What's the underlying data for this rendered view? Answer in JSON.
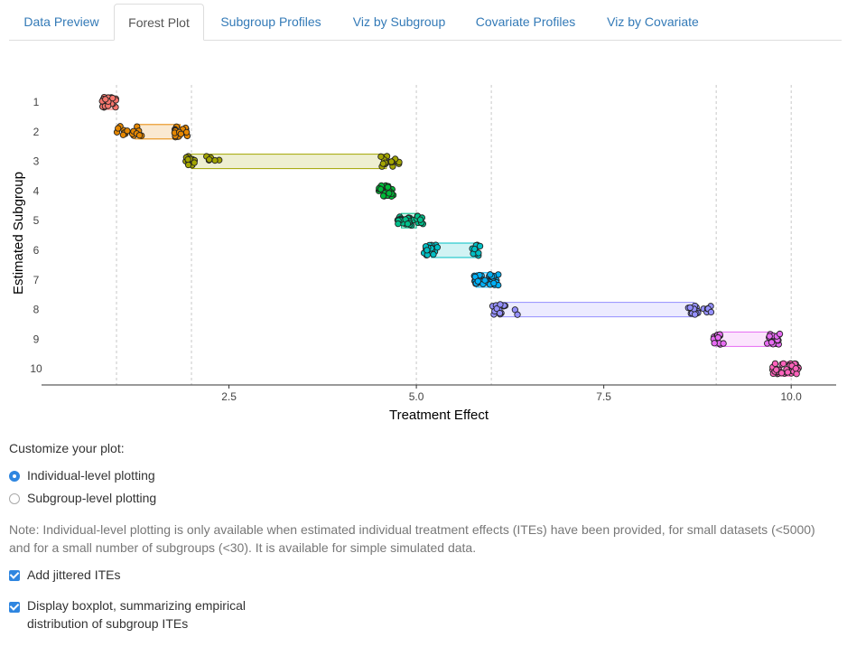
{
  "tabs": [
    {
      "label": "Data Preview",
      "active": false
    },
    {
      "label": "Forest Plot",
      "active": true
    },
    {
      "label": "Subgroup Profiles",
      "active": false
    },
    {
      "label": "Viz by Subgroup",
      "active": false
    },
    {
      "label": "Covariate Profiles",
      "active": false
    },
    {
      "label": "Viz by Covariate",
      "active": false
    }
  ],
  "chart_data": {
    "type": "scatter",
    "xlabel": "Treatment Effect",
    "ylabel": "Estimated Subgroup",
    "x_ticks": [
      "2.5",
      "5.0",
      "7.5",
      "10.0"
    ],
    "y_ticks": [
      "1",
      "2",
      "3",
      "4",
      "5",
      "6",
      "7",
      "8",
      "9",
      "10"
    ],
    "xlim": [
      0.0,
      10.6
    ],
    "grid": "vertical dashed at subgroup boundaries",
    "boundaries": [
      1.0,
      2.0,
      5.0,
      6.0,
      9.0,
      10.0
    ],
    "series": [
      {
        "subgroup": "1",
        "color": "#f8766d",
        "min": 0.8,
        "q1": 0.85,
        "q3": 0.95,
        "max": 1.0
      },
      {
        "subgroup": "2",
        "color": "#e58700",
        "min": 1.0,
        "q1": 1.25,
        "q3": 1.85,
        "max": 1.95
      },
      {
        "subgroup": "3",
        "color": "#a3a500",
        "min": 1.9,
        "q1": 2.0,
        "q3": 4.6,
        "max": 4.8
      },
      {
        "subgroup": "4",
        "color": "#00ba38",
        "min": 4.5,
        "q1": 4.55,
        "q3": 4.65,
        "max": 4.7
      },
      {
        "subgroup": "5",
        "color": "#00c08b",
        "min": 4.75,
        "q1": 4.8,
        "q3": 5.0,
        "max": 5.1
      },
      {
        "subgroup": "6",
        "color": "#00bfc4",
        "min": 5.1,
        "q1": 5.2,
        "q3": 5.8,
        "max": 5.85
      },
      {
        "subgroup": "7",
        "color": "#00b0f6",
        "min": 5.75,
        "q1": 5.8,
        "q3": 6.0,
        "max": 6.1
      },
      {
        "subgroup": "8",
        "color": "#9590ff",
        "min": 6.0,
        "q1": 6.1,
        "q3": 8.7,
        "max": 8.95
      },
      {
        "subgroup": "9",
        "color": "#e76bf3",
        "min": 8.95,
        "q1": 9.0,
        "q3": 9.75,
        "max": 9.85
      },
      {
        "subgroup": "10",
        "color": "#ff62bc",
        "min": 9.75,
        "q1": 9.85,
        "q3": 10.0,
        "max": 10.1
      }
    ]
  },
  "controls": {
    "title": "Customize your plot:",
    "radio_individual": "Individual-level plotting",
    "radio_subgroup": "Subgroup-level plotting",
    "note": "Note: Individual-level plotting is only available when estimated individual treatment effects (ITEs) have been provided, for small datasets (<5000) and for a small number of subgroups (<30). It is available for simple simulated data.",
    "check_jitter": "Add jittered ITEs",
    "check_boxplot_line1": "Display boxplot, summarizing empirical",
    "check_boxplot_line2": "distribution of subgroup ITEs"
  }
}
